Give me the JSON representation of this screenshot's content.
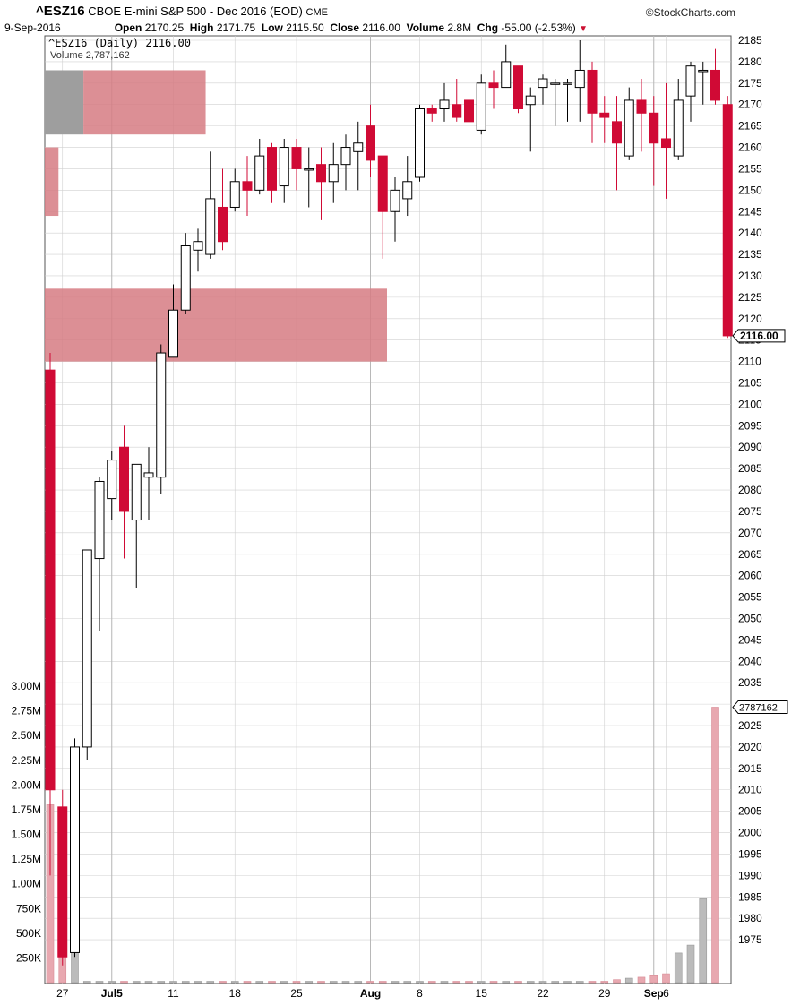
{
  "header": {
    "symbol": "^ESZ16",
    "description": "CBOE E-mini S&P 500 - Dec 2016 (EOD)",
    "exchange": "CME",
    "brand": "©StockCharts.com",
    "date": "9-Sep-2016",
    "open_label": "Open",
    "open": "2170.25",
    "high_label": "High",
    "high": "2171.75",
    "low_label": "Low",
    "low": "2115.50",
    "close_label": "Close",
    "close": "2116.00",
    "volume_label": "Volume",
    "volume": "2.8M",
    "chg_label": "Chg",
    "chg": "-55.00 (-2.53%)"
  },
  "legend": {
    "price": "^ESZ16 (Daily) 2116.00",
    "volume": "Volume 2,787,162"
  },
  "last_price_tag": "2116.00",
  "last_volume_tag": "2787162",
  "chart_data": {
    "type": "candlestick",
    "price_axis": {
      "min": 1970,
      "max": 2185,
      "ticks": [
        2185,
        2180,
        2175,
        2170,
        2165,
        2160,
        2155,
        2150,
        2145,
        2140,
        2135,
        2130,
        2125,
        2120,
        2115,
        2110,
        2105,
        2100,
        2095,
        2090,
        2085,
        2080,
        2075,
        2070,
        2065,
        2060,
        2055,
        2050,
        2045,
        2040,
        2035,
        2030,
        2025,
        2020,
        2015,
        2010,
        2005,
        2000,
        1995,
        1990,
        1985,
        1980,
        1975
      ]
    },
    "volume_axis": {
      "min": 0,
      "max": 3000000,
      "ticks": [
        "3.00M",
        "2.75M",
        "2.50M",
        "2.25M",
        "2.00M",
        "1.75M",
        "1.50M",
        "1.25M",
        "1.00M",
        "750K",
        "500K",
        "250K"
      ]
    },
    "x_labels": [
      {
        "text": "27",
        "index": 1,
        "bold": false
      },
      {
        "text": "Jul5",
        "index": 5,
        "bold": true
      },
      {
        "text": "11",
        "index": 10,
        "bold": false
      },
      {
        "text": "18",
        "index": 15,
        "bold": false
      },
      {
        "text": "25",
        "index": 20,
        "bold": false
      },
      {
        "text": "Aug",
        "index": 26,
        "bold": true
      },
      {
        "text": "8",
        "index": 30,
        "bold": false
      },
      {
        "text": "15",
        "index": 35,
        "bold": false
      },
      {
        "text": "22",
        "index": 40,
        "bold": false
      },
      {
        "text": "29",
        "index": 45,
        "bold": false
      },
      {
        "text": "Sep",
        "index": 49,
        "bold": true
      },
      {
        "text": "6",
        "index": 50,
        "bold": false
      }
    ],
    "candles": [
      {
        "o": 2108,
        "h": 2112,
        "l": 1990,
        "c": 2010
      },
      {
        "o": 2006,
        "h": 2010,
        "l": 1969,
        "c": 1971
      },
      {
        "o": 1972,
        "h": 2022,
        "l": 1971,
        "c": 2020
      },
      {
        "o": 2020,
        "h": 2066,
        "l": 2017,
        "c": 2066
      },
      {
        "o": 2064,
        "h": 2083,
        "l": 2047,
        "c": 2082
      },
      {
        "o": 2078,
        "h": 2089,
        "l": 2073,
        "c": 2087
      },
      {
        "o": 2090,
        "h": 2095,
        "l": 2064,
        "c": 2075
      },
      {
        "o": 2073,
        "h": 2086,
        "l": 2057,
        "c": 2086
      },
      {
        "o": 2083,
        "h": 2090,
        "l": 2073,
        "c": 2084
      },
      {
        "o": 2083,
        "h": 2114,
        "l": 2079,
        "c": 2112
      },
      {
        "o": 2111,
        "h": 2128,
        "l": 2111,
        "c": 2122
      },
      {
        "o": 2122,
        "h": 2140,
        "l": 2121,
        "c": 2137
      },
      {
        "o": 2136,
        "h": 2141,
        "l": 2131,
        "c": 2138
      },
      {
        "o": 2135,
        "h": 2159,
        "l": 2134,
        "c": 2148
      },
      {
        "o": 2146,
        "h": 2155,
        "l": 2136,
        "c": 2138
      },
      {
        "o": 2146,
        "h": 2155,
        "l": 2145,
        "c": 2152
      },
      {
        "o": 2152,
        "h": 2158,
        "l": 2144,
        "c": 2150
      },
      {
        "o": 2150,
        "h": 2162,
        "l": 2149,
        "c": 2158
      },
      {
        "o": 2160,
        "h": 2161,
        "l": 2147,
        "c": 2150
      },
      {
        "o": 2151,
        "h": 2162,
        "l": 2147,
        "c": 2160
      },
      {
        "o": 2160,
        "h": 2162,
        "l": 2150,
        "c": 2155
      },
      {
        "o": 2155,
        "h": 2160,
        "l": 2146,
        "c": 2155
      },
      {
        "o": 2156,
        "h": 2160,
        "l": 2143,
        "c": 2152
      },
      {
        "o": 2152,
        "h": 2161,
        "l": 2147,
        "c": 2156
      },
      {
        "o": 2156,
        "h": 2163,
        "l": 2150,
        "c": 2160
      },
      {
        "o": 2159,
        "h": 2166,
        "l": 2150,
        "c": 2161
      },
      {
        "o": 2165,
        "h": 2170,
        "l": 2153,
        "c": 2157
      },
      {
        "o": 2158,
        "h": 2158,
        "l": 2134,
        "c": 2145
      },
      {
        "o": 2145,
        "h": 2153,
        "l": 2138,
        "c": 2150
      },
      {
        "o": 2148,
        "h": 2158,
        "l": 2144,
        "c": 2152
      },
      {
        "o": 2153,
        "h": 2170,
        "l": 2152,
        "c": 2169
      },
      {
        "o": 2169,
        "h": 2170,
        "l": 2166,
        "c": 2168
      },
      {
        "o": 2169,
        "h": 2175,
        "l": 2166,
        "c": 2171
      },
      {
        "o": 2170,
        "h": 2176,
        "l": 2166,
        "c": 2167
      },
      {
        "o": 2171,
        "h": 2173,
        "l": 2164,
        "c": 2166
      },
      {
        "o": 2164,
        "h": 2177,
        "l": 2163,
        "c": 2175
      },
      {
        "o": 2175,
        "h": 2178,
        "l": 2169,
        "c": 2174
      },
      {
        "o": 2174,
        "h": 2184,
        "l": 2174,
        "c": 2180
      },
      {
        "o": 2179,
        "h": 2179,
        "l": 2168,
        "c": 2169
      },
      {
        "o": 2170,
        "h": 2174,
        "l": 2159,
        "c": 2172
      },
      {
        "o": 2174,
        "h": 2177,
        "l": 2170,
        "c": 2176
      },
      {
        "o": 2175,
        "h": 2176,
        "l": 2165,
        "c": 2175
      },
      {
        "o": 2175,
        "h": 2176,
        "l": 2166,
        "c": 2175
      },
      {
        "o": 2174,
        "h": 2185,
        "l": 2166,
        "c": 2178
      },
      {
        "o": 2178,
        "h": 2180,
        "l": 2161,
        "c": 2168
      },
      {
        "o": 2168,
        "h": 2172,
        "l": 2161,
        "c": 2167
      },
      {
        "o": 2166,
        "h": 2172,
        "l": 2150,
        "c": 2161
      },
      {
        "o": 2158,
        "h": 2174,
        "l": 2157,
        "c": 2171
      },
      {
        "o": 2171,
        "h": 2176,
        "l": 2159,
        "c": 2168
      },
      {
        "o": 2168,
        "h": 2172,
        "l": 2151,
        "c": 2161
      },
      {
        "o": 2162,
        "h": 2175,
        "l": 2148,
        "c": 2160
      },
      {
        "o": 2158,
        "h": 2176,
        "l": 2157,
        "c": 2171
      },
      {
        "o": 2172,
        "h": 2180,
        "l": 2166,
        "c": 2179
      },
      {
        "o": 2178,
        "h": 2180,
        "l": 2170,
        "c": 2178
      },
      {
        "o": 2178,
        "h": 2183,
        "l": 2170,
        "c": 2171
      },
      {
        "o": 2170,
        "h": 2172,
        "l": 2115.5,
        "c": 2116
      }
    ],
    "volumes": [
      1800000,
      1650000,
      2250000,
      0,
      0,
      0,
      0,
      0,
      0,
      0,
      0,
      0,
      0,
      0,
      0,
      0,
      0,
      0,
      0,
      0,
      0,
      0,
      0,
      0,
      0,
      0,
      0,
      0,
      0,
      0,
      0,
      0,
      0,
      0,
      0,
      0,
      0,
      0,
      0,
      0,
      0,
      0,
      0,
      0,
      0,
      0,
      30000,
      45000,
      55000,
      70000,
      90000,
      300000,
      380000,
      850000,
      2787162
    ],
    "volume_by_price": [
      {
        "from": 2163,
        "to": 2178,
        "up": 0.24,
        "down": 0.76,
        "scale": 0.47
      },
      {
        "from": 2144,
        "to": 2160,
        "up": 0.0,
        "down": 1.0,
        "scale": 0.04
      },
      {
        "from": 2110,
        "to": 2127,
        "up": 0.0,
        "down": 1.0,
        "scale": 1.0
      }
    ],
    "colors": {
      "down": "#d00a35",
      "up": "#ffffff",
      "vol_up": "#bbbbbb",
      "vol_down": "#e8a8b0",
      "vbp": "#d67b82",
      "vbp_up": "#9e9e9e",
      "grid": "#d0d0d0"
    }
  }
}
